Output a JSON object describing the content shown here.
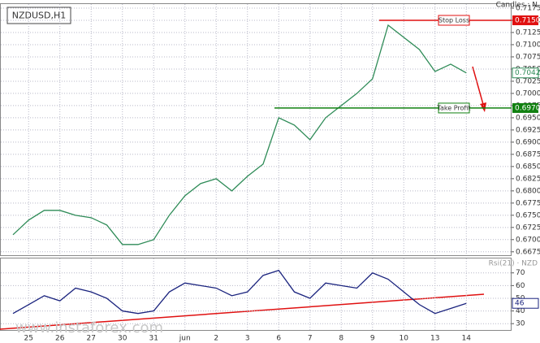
{
  "chart_data": [
    {
      "type": "line",
      "title": "NZDUSD,H1",
      "subtitle": "Candles : N",
      "watermark": "www.instaforex.com",
      "categories": [
        null,
        "25",
        null,
        "26",
        null,
        "27",
        null,
        "30",
        null,
        "31",
        null,
        "jun",
        null,
        "2",
        null,
        "3",
        null,
        "6",
        null,
        "7",
        null,
        "8",
        null,
        "9",
        null,
        "10",
        null,
        "13",
        null,
        "14"
      ],
      "series": [
        {
          "name": "NZDUSD",
          "color": "#2e8b57",
          "values": [
            0.671,
            0.674,
            0.676,
            0.676,
            0.675,
            0.6745,
            0.673,
            0.669,
            0.669,
            0.67,
            0.675,
            0.679,
            0.6815,
            0.6825,
            0.68,
            0.683,
            0.6855,
            0.695,
            0.6935,
            0.6905,
            0.695,
            0.6975,
            0.7,
            0.703,
            0.714,
            0.7115,
            0.709,
            0.7045,
            0.706,
            0.7042
          ]
        }
      ],
      "ylim": [
        0.6668,
        0.7185
      ],
      "yticks": [
        0.7175,
        {
          "value": 0.715,
          "label": "0.7150"
        },
        0.7125,
        {
          "value": 0.71,
          "label": "0.7100"
        },
        0.7075,
        {
          "value": 0.705,
          "label": "0.7050"
        },
        0.7025,
        {
          "value": 0.7,
          "label": "0.7000"
        },
        0.6975,
        {
          "value": 0.695,
          "label": "0.6950"
        },
        0.6925,
        {
          "value": 0.69,
          "label": "0.6900"
        },
        0.6875,
        {
          "value": 0.685,
          "label": "0.6850"
        },
        0.6825,
        {
          "value": 0.68,
          "label": "0.6800"
        },
        0.6775,
        {
          "value": 0.675,
          "label": "0.6750"
        },
        0.6725,
        {
          "value": 0.67,
          "label": "0.6700"
        },
        0.6675
      ],
      "levels": [
        {
          "name": "Stop Loss",
          "value": 0.715,
          "label": "0.7150",
          "color": "#e01010"
        },
        {
          "name": "Take Profit",
          "value": 0.697,
          "label": "0.6970",
          "color": "#108010"
        }
      ],
      "grid": true
    },
    {
      "type": "line",
      "title": "Rsi(21) · NZD",
      "series": [
        {
          "name": "Rsi(21)",
          "color": "#1a237e",
          "values": [
            38,
            45,
            52,
            48,
            58,
            55,
            50,
            40,
            38,
            40,
            55,
            62,
            60,
            58,
            52,
            55,
            68,
            72,
            55,
            50,
            62,
            60,
            58,
            70,
            65,
            55,
            45,
            38,
            42,
            46
          ]
        }
      ],
      "ylim": [
        25,
        82
      ],
      "yticks": [
        30,
        40,
        50,
        60,
        70
      ],
      "grid": true
    }
  ]
}
